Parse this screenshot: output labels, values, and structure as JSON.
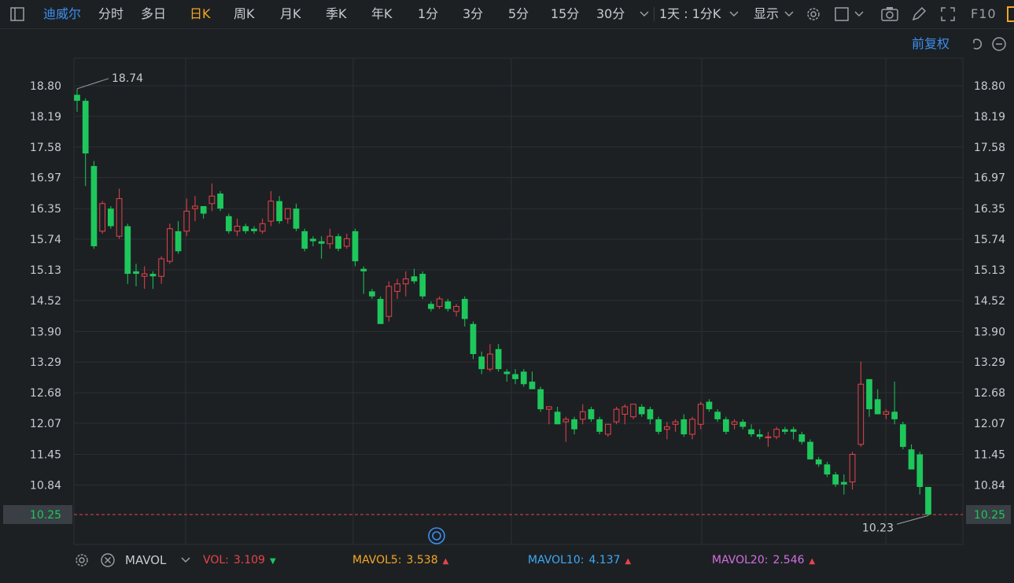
{
  "toolbar": {
    "stock_name": "迪威尔",
    "tabs": [
      "分时",
      "多日",
      "日K",
      "周K",
      "月K",
      "季K",
      "年K",
      "1分",
      "3分",
      "5分",
      "15分",
      "30分"
    ],
    "active_tab": "日K",
    "period_select": "1天 : 1分K",
    "display_label": "显示",
    "f10_label": "F10"
  },
  "restore_label": "前复权",
  "colors": {
    "up": "#e8434a",
    "down": "#1ec75b",
    "accent": "#f5a623",
    "blue": "#3d8ef0"
  },
  "chart_data": {
    "type": "candlestick",
    "y_ticks": [
      "18.80",
      "18.19",
      "17.58",
      "16.97",
      "16.35",
      "15.74",
      "15.13",
      "14.52",
      "13.90",
      "13.29",
      "12.68",
      "12.07",
      "11.45",
      "10.84",
      "10.25"
    ],
    "ylim": [
      9.95,
      19.0
    ],
    "current_price": "10.25",
    "max_label": "18.74",
    "min_label": "10.23",
    "grid": true,
    "candles": [
      {
        "o": 18.62,
        "h": 18.74,
        "l": 18.28,
        "c": 18.5
      },
      {
        "o": 18.5,
        "h": 18.55,
        "l": 16.8,
        "c": 17.45
      },
      {
        "o": 17.2,
        "h": 17.3,
        "l": 15.55,
        "c": 15.6
      },
      {
        "o": 15.9,
        "h": 16.5,
        "l": 15.85,
        "c": 16.45
      },
      {
        "o": 16.35,
        "h": 16.4,
        "l": 15.95,
        "c": 16.0
      },
      {
        "o": 15.8,
        "h": 16.75,
        "l": 15.75,
        "c": 16.55
      },
      {
        "o": 16.0,
        "h": 16.05,
        "l": 14.85,
        "c": 15.05
      },
      {
        "o": 15.1,
        "h": 15.25,
        "l": 14.8,
        "c": 15.05
      },
      {
        "o": 15.0,
        "h": 15.2,
        "l": 14.75,
        "c": 15.05
      },
      {
        "o": 15.05,
        "h": 15.1,
        "l": 14.75,
        "c": 15.0
      },
      {
        "o": 15.0,
        "h": 15.4,
        "l": 14.85,
        "c": 15.35
      },
      {
        "o": 15.3,
        "h": 16.05,
        "l": 15.25,
        "c": 15.95
      },
      {
        "o": 15.9,
        "h": 16.1,
        "l": 15.45,
        "c": 15.5
      },
      {
        "o": 15.9,
        "h": 16.55,
        "l": 15.8,
        "c": 16.3
      },
      {
        "o": 16.35,
        "h": 16.6,
        "l": 16.1,
        "c": 16.4
      },
      {
        "o": 16.4,
        "h": 16.4,
        "l": 16.15,
        "c": 16.25
      },
      {
        "o": 16.45,
        "h": 16.85,
        "l": 16.3,
        "c": 16.6
      },
      {
        "o": 16.65,
        "h": 16.7,
        "l": 16.3,
        "c": 16.35
      },
      {
        "o": 16.2,
        "h": 16.25,
        "l": 15.85,
        "c": 15.9
      },
      {
        "o": 15.9,
        "h": 16.15,
        "l": 15.8,
        "c": 16.0
      },
      {
        "o": 16.0,
        "h": 16.05,
        "l": 15.85,
        "c": 15.9
      },
      {
        "o": 15.95,
        "h": 16.0,
        "l": 15.85,
        "c": 15.9
      },
      {
        "o": 15.9,
        "h": 16.15,
        "l": 15.85,
        "c": 16.05
      },
      {
        "o": 16.1,
        "h": 16.7,
        "l": 16.0,
        "c": 16.5
      },
      {
        "o": 16.5,
        "h": 16.6,
        "l": 16.05,
        "c": 16.1
      },
      {
        "o": 16.15,
        "h": 16.3,
        "l": 16.05,
        "c": 16.35
      },
      {
        "o": 16.35,
        "h": 16.45,
        "l": 15.9,
        "c": 15.95
      },
      {
        "o": 15.9,
        "h": 15.95,
        "l": 15.5,
        "c": 15.55
      },
      {
        "o": 15.75,
        "h": 15.8,
        "l": 15.6,
        "c": 15.7
      },
      {
        "o": 15.7,
        "h": 15.8,
        "l": 15.35,
        "c": 15.65
      },
      {
        "o": 15.65,
        "h": 15.95,
        "l": 15.55,
        "c": 15.8
      },
      {
        "o": 15.8,
        "h": 15.85,
        "l": 15.5,
        "c": 15.55
      },
      {
        "o": 15.6,
        "h": 15.85,
        "l": 15.55,
        "c": 15.75
      },
      {
        "o": 15.9,
        "h": 15.95,
        "l": 15.2,
        "c": 15.3
      },
      {
        "o": 15.15,
        "h": 15.2,
        "l": 14.65,
        "c": 15.1
      },
      {
        "o": 14.7,
        "h": 14.75,
        "l": 14.55,
        "c": 14.6
      },
      {
        "o": 14.55,
        "h": 14.6,
        "l": 14.05,
        "c": 14.05
      },
      {
        "o": 14.2,
        "h": 14.9,
        "l": 14.1,
        "c": 14.8
      },
      {
        "o": 14.7,
        "h": 14.95,
        "l": 14.55,
        "c": 14.85
      },
      {
        "o": 14.85,
        "h": 15.1,
        "l": 14.6,
        "c": 14.95
      },
      {
        "o": 15.0,
        "h": 15.15,
        "l": 14.85,
        "c": 14.9
      },
      {
        "o": 15.05,
        "h": 15.1,
        "l": 14.55,
        "c": 14.6
      },
      {
        "o": 14.45,
        "h": 14.5,
        "l": 14.3,
        "c": 14.35
      },
      {
        "o": 14.4,
        "h": 14.6,
        "l": 14.35,
        "c": 14.55
      },
      {
        "o": 14.5,
        "h": 14.55,
        "l": 14.3,
        "c": 14.35
      },
      {
        "o": 14.3,
        "h": 14.45,
        "l": 14.2,
        "c": 14.4
      },
      {
        "o": 14.55,
        "h": 14.6,
        "l": 14.0,
        "c": 14.15
      },
      {
        "o": 14.05,
        "h": 14.1,
        "l": 13.35,
        "c": 13.45
      },
      {
        "o": 13.4,
        "h": 13.5,
        "l": 13.05,
        "c": 13.15
      },
      {
        "o": 13.15,
        "h": 13.65,
        "l": 13.1,
        "c": 13.45
      },
      {
        "o": 13.55,
        "h": 13.65,
        "l": 13.1,
        "c": 13.15
      },
      {
        "o": 13.1,
        "h": 13.15,
        "l": 12.9,
        "c": 13.05
      },
      {
        "o": 13.05,
        "h": 13.15,
        "l": 12.85,
        "c": 12.95
      },
      {
        "o": 13.1,
        "h": 13.15,
        "l": 12.8,
        "c": 12.85
      },
      {
        "o": 12.9,
        "h": 13.1,
        "l": 12.75,
        "c": 12.75
      },
      {
        "o": 12.75,
        "h": 12.8,
        "l": 12.3,
        "c": 12.35
      },
      {
        "o": 12.35,
        "h": 12.4,
        "l": 12.05,
        "c": 12.4
      },
      {
        "o": 12.3,
        "h": 12.4,
        "l": 12.05,
        "c": 12.05
      },
      {
        "o": 12.1,
        "h": 12.2,
        "l": 11.7,
        "c": 12.15
      },
      {
        "o": 12.15,
        "h": 12.2,
        "l": 11.85,
        "c": 11.95
      },
      {
        "o": 12.15,
        "h": 12.45,
        "l": 12.05,
        "c": 12.3
      },
      {
        "o": 12.35,
        "h": 12.4,
        "l": 12.1,
        "c": 12.15
      },
      {
        "o": 12.15,
        "h": 12.2,
        "l": 11.85,
        "c": 11.9
      },
      {
        "o": 11.85,
        "h": 12.0,
        "l": 11.8,
        "c": 12.05
      },
      {
        "o": 12.1,
        "h": 12.4,
        "l": 12.05,
        "c": 12.35
      },
      {
        "o": 12.25,
        "h": 12.45,
        "l": 12.05,
        "c": 12.4
      },
      {
        "o": 12.2,
        "h": 12.45,
        "l": 12.15,
        "c": 12.45
      },
      {
        "o": 12.4,
        "h": 12.45,
        "l": 12.2,
        "c": 12.25
      },
      {
        "o": 12.35,
        "h": 12.4,
        "l": 12.05,
        "c": 12.15
      },
      {
        "o": 12.15,
        "h": 12.2,
        "l": 11.85,
        "c": 11.9
      },
      {
        "o": 11.95,
        "h": 12.1,
        "l": 11.75,
        "c": 12.0
      },
      {
        "o": 12.05,
        "h": 12.15,
        "l": 11.9,
        "c": 12.1
      },
      {
        "o": 12.15,
        "h": 12.25,
        "l": 11.8,
        "c": 11.85
      },
      {
        "o": 11.85,
        "h": 12.2,
        "l": 11.75,
        "c": 12.15
      },
      {
        "o": 12.05,
        "h": 12.5,
        "l": 11.95,
        "c": 12.45
      },
      {
        "o": 12.5,
        "h": 12.55,
        "l": 12.3,
        "c": 12.35
      },
      {
        "o": 12.3,
        "h": 12.35,
        "l": 12.1,
        "c": 12.15
      },
      {
        "o": 12.15,
        "h": 12.2,
        "l": 11.85,
        "c": 11.9
      },
      {
        "o": 12.05,
        "h": 12.15,
        "l": 11.95,
        "c": 12.1
      },
      {
        "o": 12.1,
        "h": 12.15,
        "l": 11.95,
        "c": 12.0
      },
      {
        "o": 11.95,
        "h": 12.05,
        "l": 11.8,
        "c": 11.85
      },
      {
        "o": 11.85,
        "h": 11.95,
        "l": 11.75,
        "c": 11.8
      },
      {
        "o": 11.8,
        "h": 11.9,
        "l": 11.6,
        "c": 11.8
      },
      {
        "o": 11.8,
        "h": 12.0,
        "l": 11.75,
        "c": 11.95
      },
      {
        "o": 11.95,
        "h": 12.0,
        "l": 11.85,
        "c": 11.9
      },
      {
        "o": 11.95,
        "h": 12.0,
        "l": 11.75,
        "c": 11.9
      },
      {
        "o": 11.85,
        "h": 11.9,
        "l": 11.65,
        "c": 11.7
      },
      {
        "o": 11.7,
        "h": 11.75,
        "l": 11.35,
        "c": 11.35
      },
      {
        "o": 11.35,
        "h": 11.4,
        "l": 11.2,
        "c": 11.25
      },
      {
        "o": 11.25,
        "h": 11.3,
        "l": 11.0,
        "c": 11.05
      },
      {
        "o": 11.05,
        "h": 11.1,
        "l": 10.8,
        "c": 10.85
      },
      {
        "o": 10.9,
        "h": 11.05,
        "l": 10.65,
        "c": 10.85
      },
      {
        "o": 10.9,
        "h": 11.5,
        "l": 10.75,
        "c": 11.45
      },
      {
        "o": 11.65,
        "h": 13.3,
        "l": 11.6,
        "c": 12.85
      },
      {
        "o": 12.95,
        "h": 12.95,
        "l": 12.2,
        "c": 12.35
      },
      {
        "o": 12.55,
        "h": 12.75,
        "l": 12.25,
        "c": 12.25
      },
      {
        "o": 12.25,
        "h": 12.35,
        "l": 12.15,
        "c": 12.3
      },
      {
        "o": 12.3,
        "h": 12.9,
        "l": 12.05,
        "c": 12.15
      },
      {
        "o": 12.05,
        "h": 12.1,
        "l": 11.55,
        "c": 11.6
      },
      {
        "o": 11.55,
        "h": 11.65,
        "l": 11.15,
        "c": 11.15
      },
      {
        "o": 11.45,
        "h": 11.5,
        "l": 10.65,
        "c": 10.8
      },
      {
        "o": 10.8,
        "h": 10.8,
        "l": 10.23,
        "c": 10.25
      }
    ]
  },
  "indicator": {
    "name": "MAVOL",
    "items": [
      {
        "label": "VOL:",
        "value": "3.109",
        "dir": "down",
        "color": "#e8434a"
      },
      {
        "label": "MAVOL5:",
        "value": "3.538",
        "dir": "up",
        "color": "#f5a623"
      },
      {
        "label": "MAVOL10:",
        "value": "4.137",
        "dir": "up",
        "color": "#3fa9f5"
      },
      {
        "label": "MAVOL20:",
        "value": "2.546",
        "dir": "up",
        "color": "#d46ee0"
      }
    ]
  }
}
